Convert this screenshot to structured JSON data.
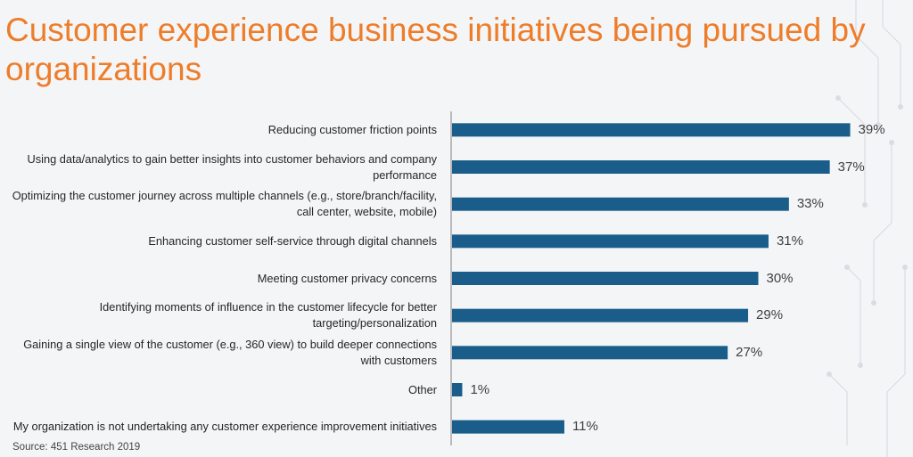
{
  "title": "Customer experience business initiatives being pursued by organizations",
  "source": "Source: 451 Research 2019",
  "colors": {
    "title": "#ee7d2a",
    "bar": "#1a5d8a",
    "axis": "#7f7f7f",
    "background": "#f4f5f7"
  },
  "chart_data": {
    "type": "bar",
    "orientation": "horizontal",
    "categories": [
      "Reducing customer friction points",
      "Using data/analytics to gain better insights into customer behaviors and company performance",
      "Optimizing the customer journey across multiple channels (e.g., store/branch/facility, call center, website, mobile)",
      "Enhancing customer self-service through digital channels",
      "Meeting customer privacy concerns",
      "Identifying moments of influence in the customer lifecycle for better targeting/personalization",
      "Gaining a single view of the customer (e.g., 360 view) to build deeper connections with customers",
      "Other",
      "My organization is not undertaking any customer experience improvement initiatives"
    ],
    "values": [
      39,
      37,
      33,
      31,
      30,
      29,
      27,
      1,
      11
    ],
    "value_labels": [
      "39%",
      "37%",
      "33%",
      "31%",
      "30%",
      "29%",
      "27%",
      "1%",
      "11%"
    ],
    "unit": "%",
    "xlim": [
      0,
      40
    ],
    "grid": false,
    "legend": "none"
  }
}
